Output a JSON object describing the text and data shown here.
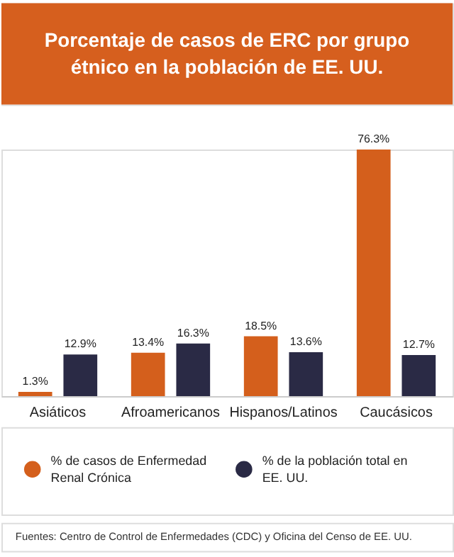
{
  "chart_data": {
    "type": "bar",
    "title": "Porcentaje de casos de ERC por grupo étnico en la población de EE. UU.",
    "categories": [
      "Asiáticos",
      "Afroamericanos",
      "Hispanos/Latinos",
      "Caucásicos"
    ],
    "series": [
      {
        "name": "% de casos de Enfermedad Renal Crónica",
        "color": "#d45f1c",
        "values": [
          1.3,
          13.4,
          18.5,
          76.3
        ],
        "value_labels": [
          "1.3%",
          "13.4%",
          "18.5%",
          "76.3%"
        ]
      },
      {
        "name": "% de la población total en EE. UU.",
        "color": "#2a2a45",
        "values": [
          12.9,
          16.3,
          13.6,
          12.7
        ],
        "value_labels": [
          "12.9%",
          "16.3%",
          "13.6%",
          "12.7%"
        ]
      }
    ],
    "legend": "bottom",
    "grid": false,
    "annotations": [
      "Fuentes: Centro de Control de Enfermedades (CDC) y Oficina del Censo de EE. UU."
    ]
  }
}
